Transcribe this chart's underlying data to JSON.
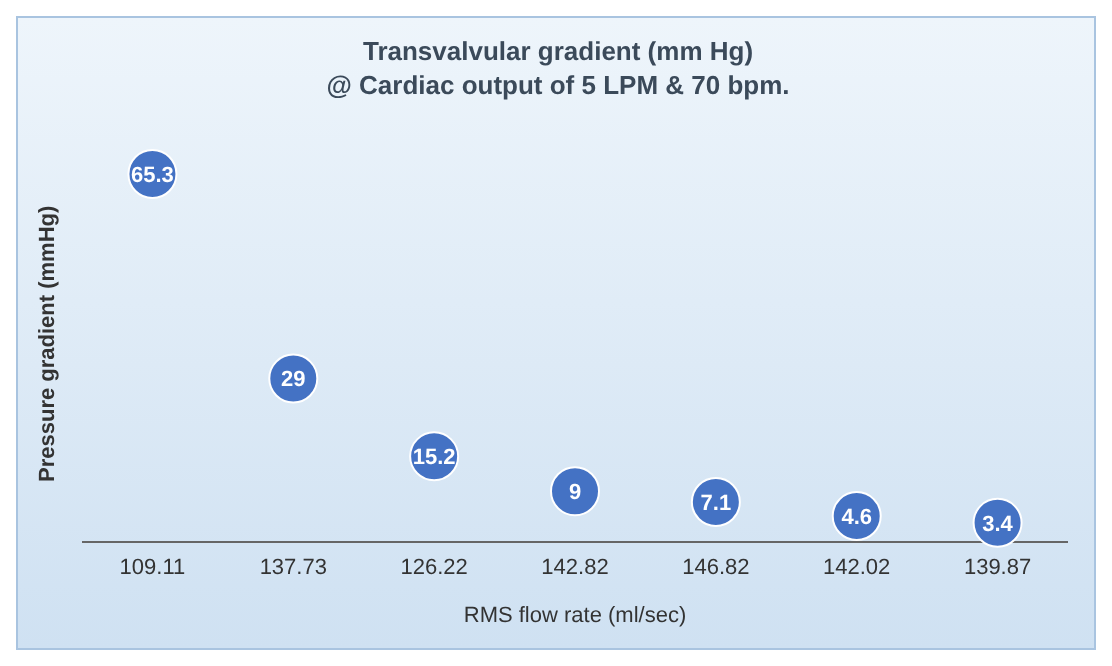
{
  "chart_data": {
    "type": "scatter",
    "title": "Transvalvular gradient (mm Hg)\n@ Cardiac output of 5 LPM & 70 bpm.",
    "xlabel": "RMS flow rate  (ml/sec)",
    "ylabel": "Pressure gradient  (mmHg)",
    "categories": [
      "109.11",
      "137.73",
      "126.22",
      "142.82",
      "146.82",
      "142.02",
      "139.87"
    ],
    "values": [
      65.3,
      29,
      15.2,
      9,
      7.1,
      4.6,
      3.4
    ],
    "color": "#4472c4",
    "marker": "circle",
    "data_labels": true,
    "relative": false
  }
}
